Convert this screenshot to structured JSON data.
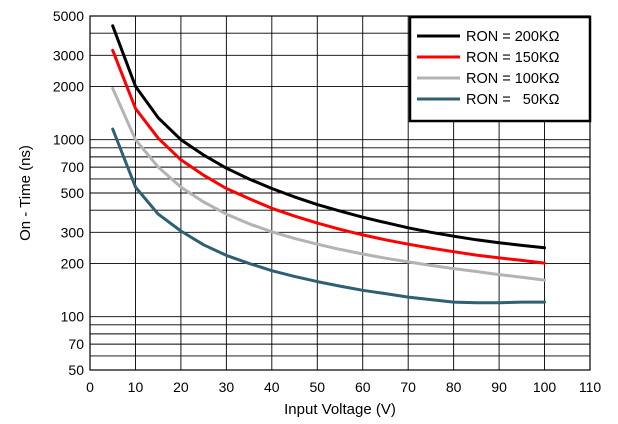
{
  "chart_data": {
    "type": "line",
    "xlabel": "Input Voltage (V)",
    "ylabel": "On - Time (ns)",
    "xlim": [
      0,
      110
    ],
    "ylim": [
      50,
      5000
    ],
    "yscale": "log",
    "grid": true,
    "legend_position": "top-right",
    "x_ticks": [
      0,
      10,
      20,
      30,
      40,
      50,
      60,
      70,
      80,
      90,
      100,
      110
    ],
    "y_ticks": [
      50,
      70,
      100,
      200,
      300,
      500,
      700,
      1000,
      2000,
      3000,
      5000
    ],
    "y_minor_grid": [
      60,
      80,
      90,
      400,
      600,
      800,
      900,
      4000
    ],
    "series": [
      {
        "name": "RON = 200KΩ",
        "color": "#000000",
        "x": [
          5,
          10,
          15,
          20,
          25,
          30,
          35,
          40,
          45,
          50,
          55,
          60,
          65,
          70,
          75,
          80,
          85,
          90,
          95,
          100
        ],
        "y": [
          4400,
          2000,
          1330,
          1000,
          820,
          690,
          600,
          530,
          475,
          430,
          395,
          365,
          340,
          318,
          300,
          285,
          272,
          262,
          253,
          245
        ]
      },
      {
        "name": "RON = 150KΩ",
        "color": "#ff0000",
        "x": [
          5,
          10,
          15,
          20,
          25,
          30,
          35,
          40,
          45,
          50,
          55,
          60,
          65,
          70,
          75,
          80,
          85,
          90,
          95,
          100
        ],
        "y": [
          3200,
          1500,
          1020,
          770,
          630,
          530,
          465,
          410,
          370,
          338,
          312,
          290,
          272,
          257,
          244,
          233,
          223,
          215,
          208,
          201
        ]
      },
      {
        "name": "RON = 100KΩ",
        "color": "#b3b3b3",
        "x": [
          5,
          10,
          15,
          20,
          25,
          30,
          35,
          40,
          45,
          50,
          55,
          60,
          65,
          70,
          75,
          80,
          85,
          90,
          95,
          100
        ],
        "y": [
          1950,
          1000,
          700,
          540,
          445,
          380,
          335,
          302,
          277,
          257,
          240,
          226,
          214,
          204,
          195,
          187,
          180,
          173,
          167,
          161
        ]
      },
      {
        "name": "RON =   50KΩ",
        "color": "#2e5f73",
        "x": [
          5,
          10,
          15,
          20,
          25,
          30,
          35,
          40,
          45,
          50,
          55,
          60,
          65,
          70,
          75,
          80,
          85,
          90,
          95,
          100
        ],
        "y": [
          1150,
          540,
          380,
          305,
          255,
          222,
          200,
          182,
          169,
          158,
          149,
          141,
          135,
          129,
          125,
          121,
          120,
          120,
          121,
          121
        ]
      }
    ]
  }
}
